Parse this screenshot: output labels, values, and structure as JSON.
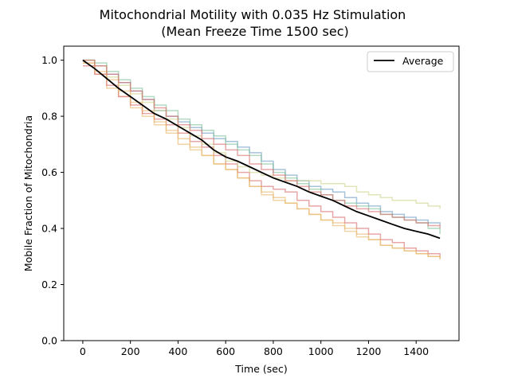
{
  "chart_data": {
    "type": "line",
    "title": "Mitochondrial Motility with 0.035 Hz Stimulation",
    "subtitle": "(Mean Freeze Time 1500 sec)",
    "xlabel": "Time (sec)",
    "ylabel": "Mobile Fraction of Mitochondria",
    "xlim": [
      -80,
      1580
    ],
    "ylim": [
      0.0,
      1.05
    ],
    "xticks": [
      0,
      200,
      400,
      600,
      800,
      1000,
      1200,
      1400
    ],
    "yticks": [
      0.0,
      0.2,
      0.4,
      0.6,
      0.8,
      1.0
    ],
    "xtick_labels": [
      "0",
      "200",
      "400",
      "600",
      "800",
      "1000",
      "1200",
      "1400"
    ],
    "ytick_labels": [
      "0.0",
      "0.2",
      "0.4",
      "0.6",
      "0.8",
      "1.0"
    ],
    "legend": {
      "position": "top-right",
      "entries": [
        "Average"
      ]
    },
    "grid": false,
    "colors": {
      "average": "#000000",
      "traces": [
        "#e8b86a",
        "#d96c6c",
        "#6b9bc3",
        "#7fc19a",
        "#cfd28a"
      ]
    },
    "series": [
      {
        "name": "Average",
        "role": "average",
        "x": [
          0,
          50,
          100,
          150,
          200,
          250,
          300,
          350,
          400,
          450,
          500,
          550,
          600,
          650,
          700,
          750,
          800,
          850,
          900,
          950,
          1000,
          1050,
          1100,
          1150,
          1200,
          1250,
          1300,
          1350,
          1400,
          1450,
          1500
        ],
        "y": [
          1.0,
          0.97,
          0.935,
          0.9,
          0.87,
          0.84,
          0.81,
          0.79,
          0.765,
          0.74,
          0.715,
          0.68,
          0.655,
          0.64,
          0.62,
          0.6,
          0.58,
          0.565,
          0.55,
          0.53,
          0.515,
          0.5,
          0.48,
          0.46,
          0.445,
          0.43,
          0.415,
          0.4,
          0.39,
          0.38,
          0.365
        ]
      },
      {
        "role": "trace",
        "x": [
          0,
          50,
          100,
          150,
          200,
          250,
          300,
          350,
          400,
          450,
          500,
          550,
          600,
          650,
          700,
          750,
          800,
          850,
          900,
          950,
          1000,
          1050,
          1100,
          1150,
          1200,
          1250,
          1300,
          1350,
          1400,
          1450,
          1500
        ],
        "y": [
          0.99,
          0.95,
          0.9,
          0.87,
          0.83,
          0.8,
          0.77,
          0.74,
          0.7,
          0.68,
          0.66,
          0.63,
          0.61,
          0.58,
          0.55,
          0.52,
          0.5,
          0.49,
          0.47,
          0.45,
          0.43,
          0.42,
          0.4,
          0.38,
          0.36,
          0.34,
          0.33,
          0.32,
          0.31,
          0.3,
          0.29
        ]
      },
      {
        "role": "trace",
        "x": [
          0,
          50,
          100,
          150,
          200,
          250,
          300,
          350,
          400,
          450,
          500,
          550,
          600,
          650,
          700,
          750,
          800,
          850,
          900,
          950,
          1000,
          1050,
          1100,
          1150,
          1200,
          1250,
          1300,
          1350,
          1400,
          1450,
          1500
        ],
        "y": [
          0.98,
          0.95,
          0.91,
          0.87,
          0.84,
          0.81,
          0.79,
          0.77,
          0.74,
          0.71,
          0.69,
          0.66,
          0.63,
          0.6,
          0.57,
          0.55,
          0.54,
          0.53,
          0.5,
          0.48,
          0.46,
          0.44,
          0.42,
          0.4,
          0.38,
          0.36,
          0.35,
          0.33,
          0.32,
          0.31,
          0.3
        ]
      },
      {
        "role": "trace",
        "x": [
          0,
          50,
          100,
          150,
          200,
          250,
          300,
          350,
          400,
          450,
          500,
          550,
          600,
          650,
          700,
          750,
          800,
          850,
          900,
          950,
          1000,
          1050,
          1100,
          1150,
          1200,
          1250,
          1300,
          1350,
          1400,
          1450,
          1500
        ],
        "y": [
          1.0,
          0.98,
          0.95,
          0.92,
          0.89,
          0.86,
          0.82,
          0.8,
          0.78,
          0.76,
          0.74,
          0.72,
          0.71,
          0.69,
          0.67,
          0.64,
          0.61,
          0.59,
          0.57,
          0.55,
          0.54,
          0.53,
          0.51,
          0.49,
          0.48,
          0.46,
          0.45,
          0.44,
          0.43,
          0.42,
          0.41
        ]
      },
      {
        "role": "trace",
        "x": [
          0,
          50,
          100,
          150,
          200,
          250,
          300,
          350,
          400,
          450,
          500,
          550,
          600,
          650,
          700,
          750,
          800,
          850,
          900,
          950,
          1000,
          1050,
          1100,
          1150,
          1200,
          1250,
          1300,
          1350,
          1400,
          1450,
          1500
        ],
        "y": [
          1.0,
          0.99,
          0.96,
          0.93,
          0.9,
          0.87,
          0.84,
          0.82,
          0.79,
          0.77,
          0.75,
          0.73,
          0.7,
          0.68,
          0.66,
          0.63,
          0.6,
          0.58,
          0.56,
          0.54,
          0.52,
          0.5,
          0.49,
          0.48,
          0.47,
          0.45,
          0.44,
          0.43,
          0.42,
          0.4,
          0.38
        ]
      },
      {
        "role": "trace",
        "x": [
          0,
          50,
          100,
          150,
          200,
          250,
          300,
          350,
          400,
          450,
          500,
          550,
          600,
          650,
          700,
          750,
          800,
          850,
          900,
          950,
          1000,
          1050,
          1100,
          1150,
          1200,
          1250,
          1300,
          1350,
          1400,
          1450,
          1500
        ],
        "y": [
          1.0,
          0.98,
          0.94,
          0.91,
          0.88,
          0.85,
          0.82,
          0.79,
          0.76,
          0.73,
          0.7,
          0.67,
          0.64,
          0.62,
          0.6,
          0.59,
          0.58,
          0.57,
          0.57,
          0.57,
          0.56,
          0.56,
          0.55,
          0.53,
          0.52,
          0.51,
          0.5,
          0.5,
          0.49,
          0.48,
          0.47
        ]
      },
      {
        "role": "trace",
        "x": [
          0,
          50,
          100,
          150,
          200,
          250,
          300,
          350,
          400,
          450,
          500,
          550,
          600,
          650,
          700,
          750,
          800,
          850,
          900,
          950,
          1000,
          1050,
          1100,
          1150,
          1200,
          1250,
          1300,
          1350,
          1400,
          1450,
          1500
        ],
        "y": [
          0.99,
          0.96,
          0.93,
          0.89,
          0.85,
          0.82,
          0.78,
          0.75,
          0.72,
          0.69,
          0.66,
          0.63,
          0.61,
          0.58,
          0.55,
          0.53,
          0.51,
          0.49,
          0.47,
          0.45,
          0.43,
          0.41,
          0.39,
          0.37,
          0.36,
          0.34,
          0.33,
          0.32,
          0.31,
          0.3,
          0.29
        ]
      },
      {
        "role": "trace",
        "x": [
          0,
          50,
          100,
          150,
          200,
          250,
          300,
          350,
          400,
          450,
          500,
          550,
          600,
          650,
          700,
          750,
          800,
          850,
          900,
          950,
          1000,
          1050,
          1100,
          1150,
          1200,
          1250,
          1300,
          1350,
          1400,
          1450,
          1500
        ],
        "y": [
          1.0,
          0.98,
          0.95,
          0.92,
          0.89,
          0.86,
          0.83,
          0.8,
          0.77,
          0.75,
          0.72,
          0.7,
          0.68,
          0.66,
          0.63,
          0.61,
          0.59,
          0.57,
          0.55,
          0.53,
          0.52,
          0.5,
          0.48,
          0.47,
          0.46,
          0.45,
          0.44,
          0.43,
          0.42,
          0.41,
          0.4
        ]
      }
    ]
  }
}
